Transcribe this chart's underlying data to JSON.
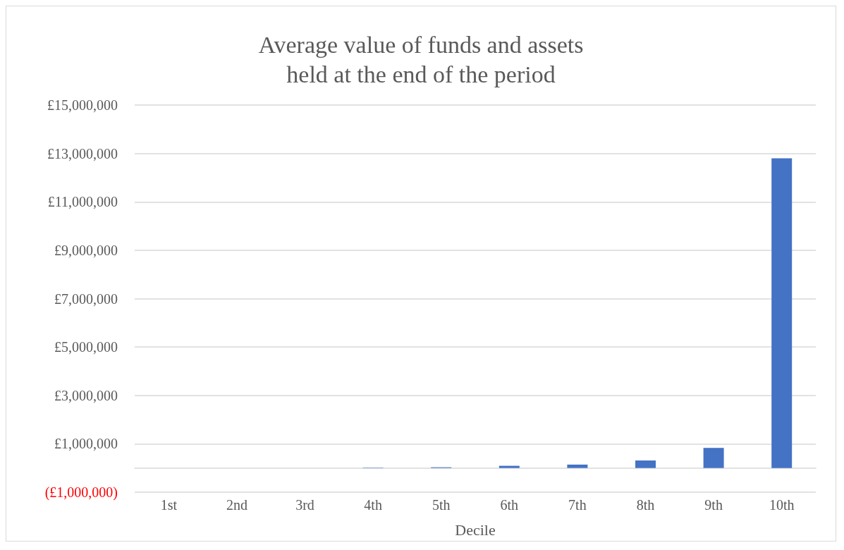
{
  "chart_data": {
    "type": "bar",
    "title": "Average value of funds and assets\nheld at the end of the period",
    "xlabel": "Decile",
    "categories": [
      "1st",
      "2nd",
      "3rd",
      "4th",
      "5th",
      "6th",
      "7th",
      "8th",
      "9th",
      "10th"
    ],
    "values": [
      0,
      0,
      0,
      10000,
      30000,
      90000,
      140000,
      310000,
      830000,
      12800000
    ],
    "color": "#4472c4",
    "ylim": [
      -1000000,
      15000000
    ],
    "yticks": [
      {
        "value": -1000000,
        "label": "(£1,000,000)"
      },
      {
        "value": 1000000,
        "label": "£1,000,000"
      },
      {
        "value": 3000000,
        "label": "£3,000,000"
      },
      {
        "value": 5000000,
        "label": "£5,000,000"
      },
      {
        "value": 7000000,
        "label": "£7,000,000"
      },
      {
        "value": 9000000,
        "label": "£9,000,000"
      },
      {
        "value": 11000000,
        "label": "£11,000,000"
      },
      {
        "value": 13000000,
        "label": "£13,000,000"
      },
      {
        "value": 15000000,
        "label": "£15,000,000"
      }
    ],
    "grid": "y"
  }
}
